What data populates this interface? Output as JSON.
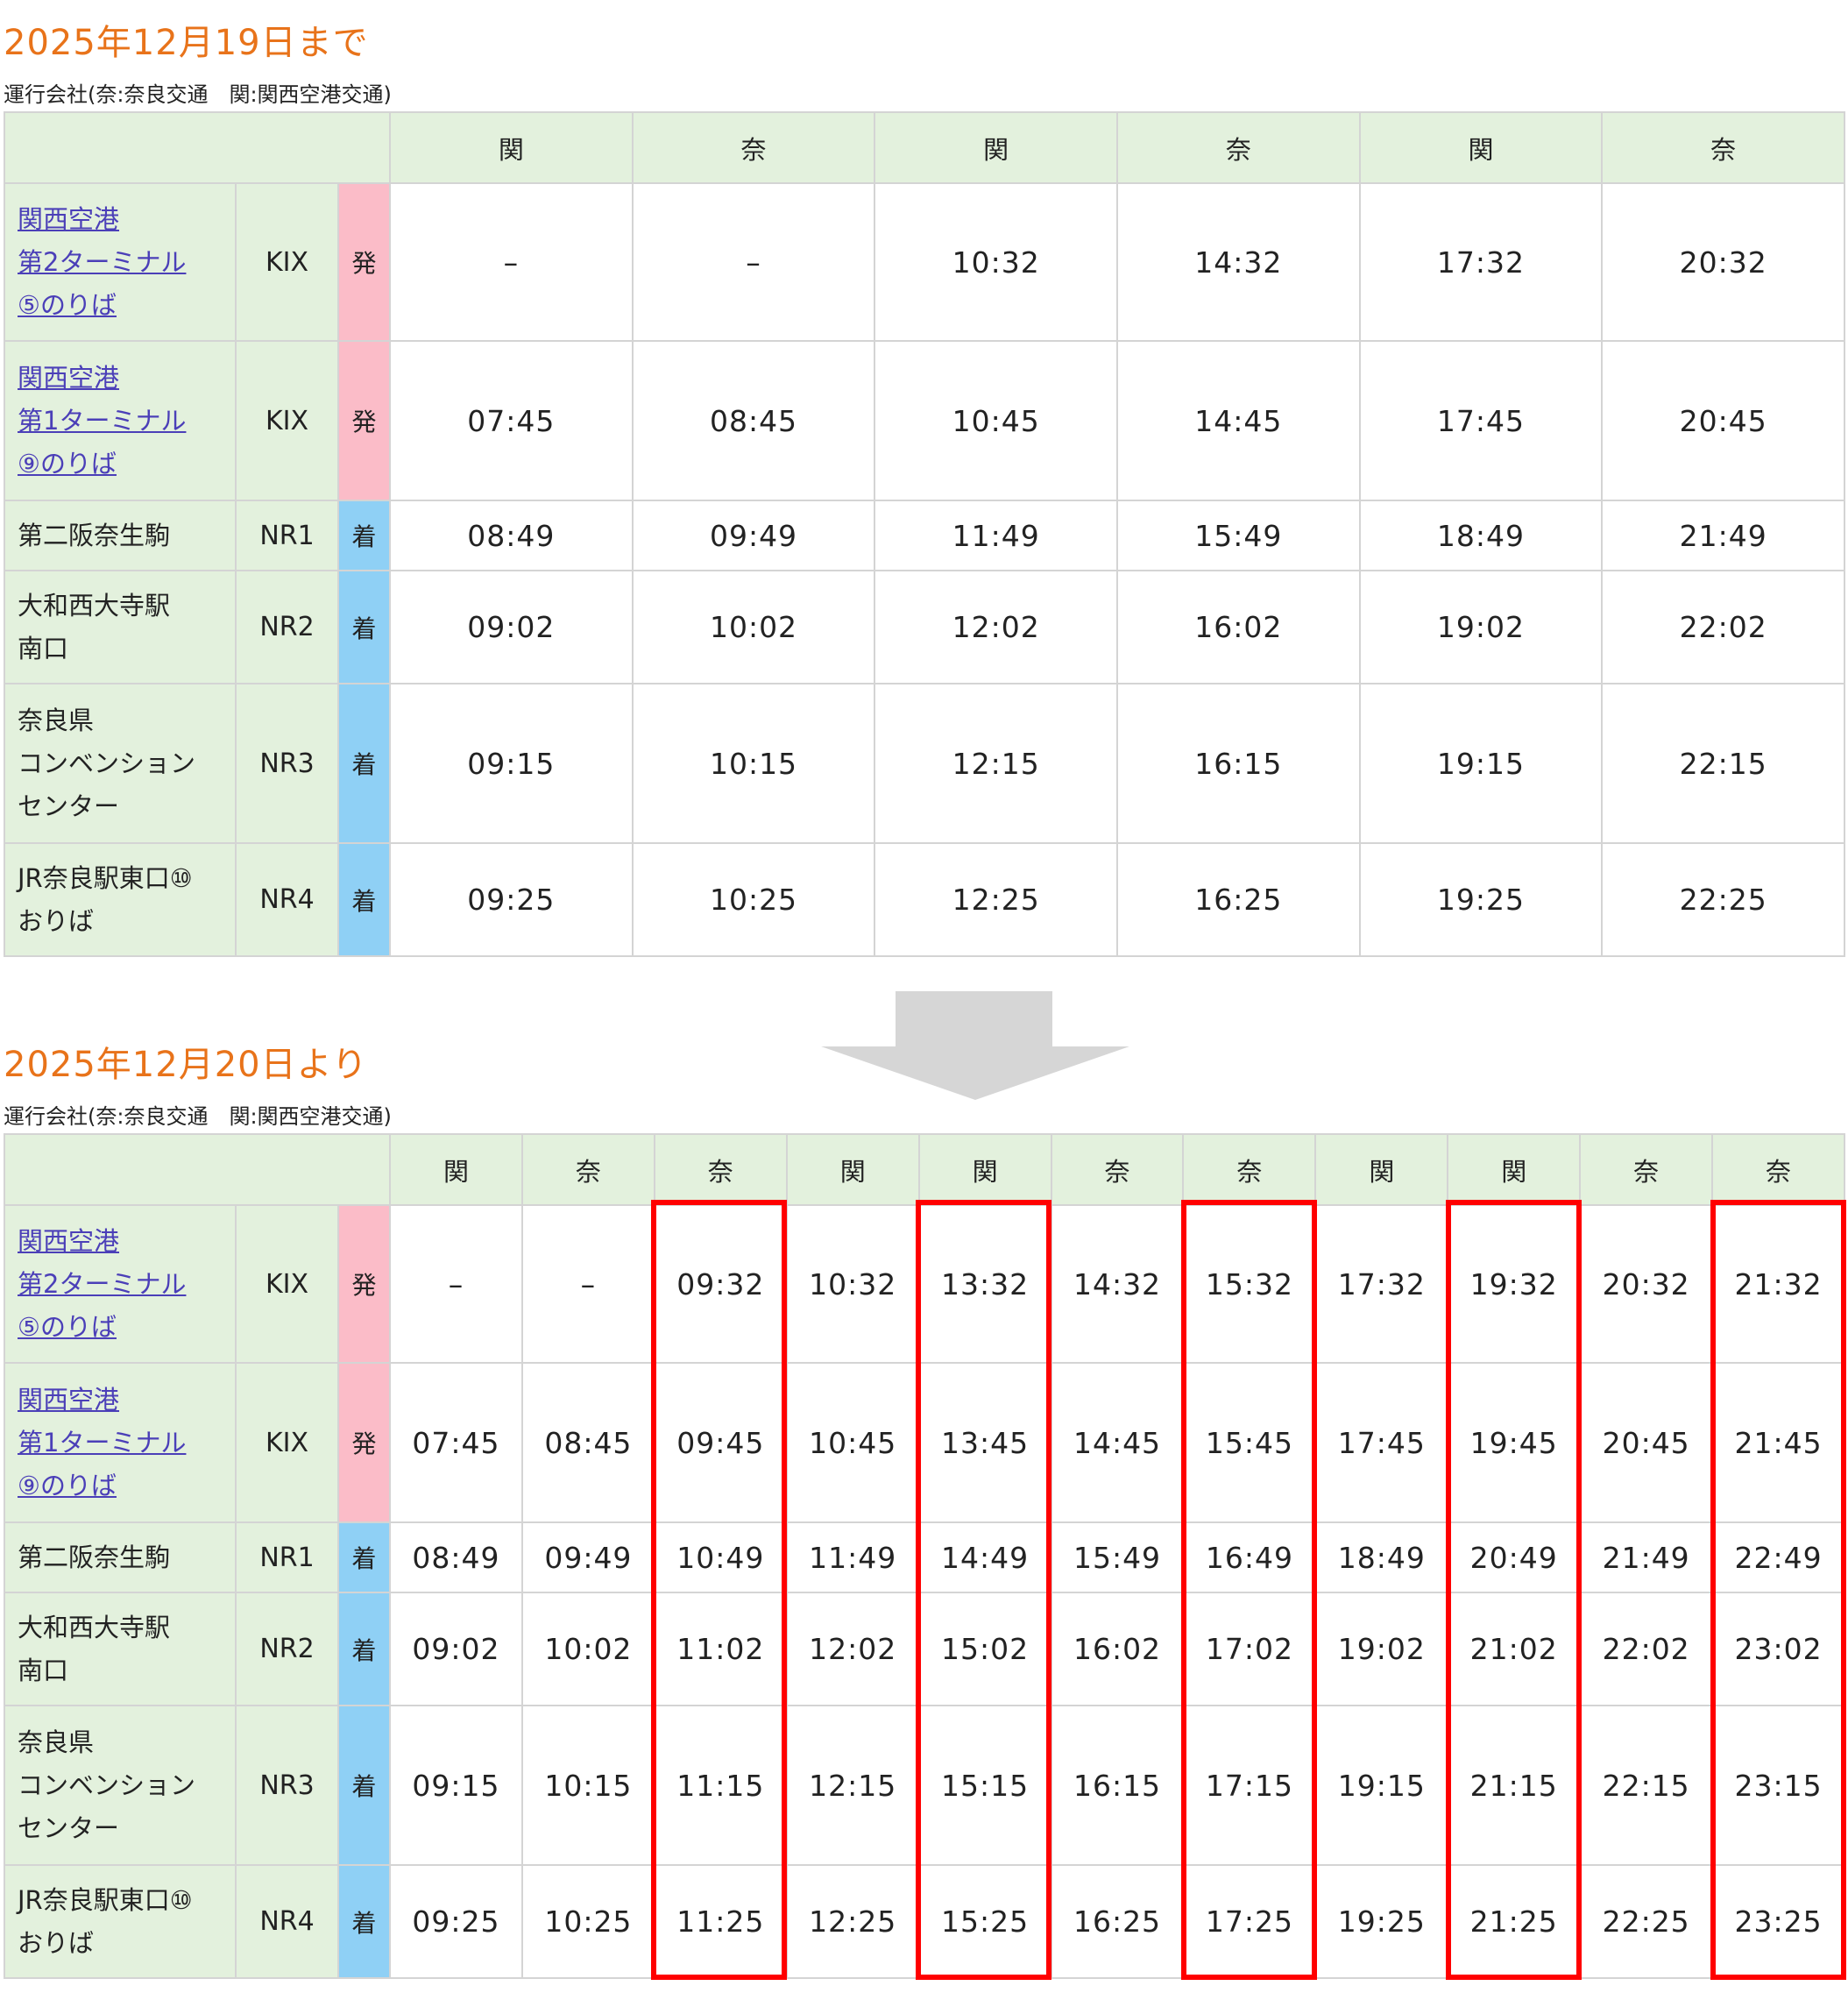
{
  "section1": {
    "title": "2025年12月19日まで",
    "operators": "運行会社(奈:奈良交通　関:関西空港交通)",
    "operators_by_column": [
      "関",
      "奈",
      "関",
      "奈",
      "関",
      "奈"
    ],
    "stops": [
      {
        "name": [
          "関西空港",
          "第2ターミナル",
          "⑤のりば"
        ],
        "link": true,
        "code": "KIX",
        "type": "発",
        "times": [
          "–",
          "–",
          "10:32",
          "14:32",
          "17:32",
          "20:32"
        ]
      },
      {
        "name": [
          "関西空港",
          "第1ターミナル",
          "⑨のりば"
        ],
        "link": true,
        "code": "KIX",
        "type": "発",
        "times": [
          "07:45",
          "08:45",
          "10:45",
          "14:45",
          "17:45",
          "20:45"
        ]
      },
      {
        "name": [
          "第二阪奈生駒"
        ],
        "link": false,
        "code": "NR1",
        "type": "着",
        "times": [
          "08:49",
          "09:49",
          "11:49",
          "15:49",
          "18:49",
          "21:49"
        ]
      },
      {
        "name": [
          "大和西大寺駅",
          "南口"
        ],
        "link": false,
        "code": "NR2",
        "type": "着",
        "times": [
          "09:02",
          "10:02",
          "12:02",
          "16:02",
          "19:02",
          "22:02"
        ]
      },
      {
        "name": [
          "奈良県",
          "コンベンション",
          "センター"
        ],
        "link": false,
        "code": "NR3",
        "type": "着",
        "times": [
          "09:15",
          "10:15",
          "12:15",
          "16:15",
          "19:15",
          "22:15"
        ]
      },
      {
        "name": [
          "JR奈良駅東口⑩",
          "おりば"
        ],
        "link": false,
        "code": "NR4",
        "type": "着",
        "times": [
          "09:25",
          "10:25",
          "12:25",
          "16:25",
          "19:25",
          "22:25"
        ]
      }
    ]
  },
  "section2": {
    "title": "2025年12月20日より",
    "operators": "運行会社(奈:奈良交通　関:関西空港交通)",
    "operators_by_column": [
      "関",
      "奈",
      "奈",
      "関",
      "関",
      "奈",
      "奈",
      "関",
      "関",
      "奈",
      "奈"
    ],
    "highlighted_columns": [
      3,
      5,
      7,
      9,
      11
    ],
    "highlight_color": "#ff0000",
    "stops": [
      {
        "name": [
          "関西空港",
          "第2ターミナル",
          "⑤のりば"
        ],
        "link": true,
        "code": "KIX",
        "type": "発",
        "times": [
          "–",
          "–",
          "09:32",
          "10:32",
          "13:32",
          "14:32",
          "15:32",
          "17:32",
          "19:32",
          "20:32",
          "21:32"
        ]
      },
      {
        "name": [
          "関西空港",
          "第1ターミナル",
          "⑨のりば"
        ],
        "link": true,
        "code": "KIX",
        "type": "発",
        "times": [
          "07:45",
          "08:45",
          "09:45",
          "10:45",
          "13:45",
          "14:45",
          "15:45",
          "17:45",
          "19:45",
          "20:45",
          "21:45"
        ]
      },
      {
        "name": [
          "第二阪奈生駒"
        ],
        "link": false,
        "code": "NR1",
        "type": "着",
        "times": [
          "08:49",
          "09:49",
          "10:49",
          "11:49",
          "14:49",
          "15:49",
          "16:49",
          "18:49",
          "20:49",
          "21:49",
          "22:49"
        ]
      },
      {
        "name": [
          "大和西大寺駅",
          "南口"
        ],
        "link": false,
        "code": "NR2",
        "type": "着",
        "times": [
          "09:02",
          "10:02",
          "11:02",
          "12:02",
          "15:02",
          "16:02",
          "17:02",
          "19:02",
          "21:02",
          "22:02",
          "23:02"
        ]
      },
      {
        "name": [
          "奈良県",
          "コンベンション",
          "センター"
        ],
        "link": false,
        "code": "NR3",
        "type": "着",
        "times": [
          "09:15",
          "10:15",
          "11:15",
          "12:15",
          "15:15",
          "16:15",
          "17:15",
          "19:15",
          "21:15",
          "22:15",
          "23:15"
        ]
      },
      {
        "name": [
          "JR奈良駅東口⑩",
          "おりば"
        ],
        "link": false,
        "code": "NR4",
        "type": "着",
        "times": [
          "09:25",
          "10:25",
          "11:25",
          "12:25",
          "15:25",
          "16:25",
          "17:25",
          "19:25",
          "21:25",
          "22:25",
          "23:25"
        ]
      }
    ]
  },
  "colors": {
    "title": "#e8731a",
    "header_bg": "#e3f1dd",
    "departure_bg": "#fbbcc8",
    "arrival_bg": "#8fd0f5",
    "link": "#4b3fb8",
    "arrow": "#d6d6d6"
  },
  "arrow_icon": "down-arrow-icon"
}
